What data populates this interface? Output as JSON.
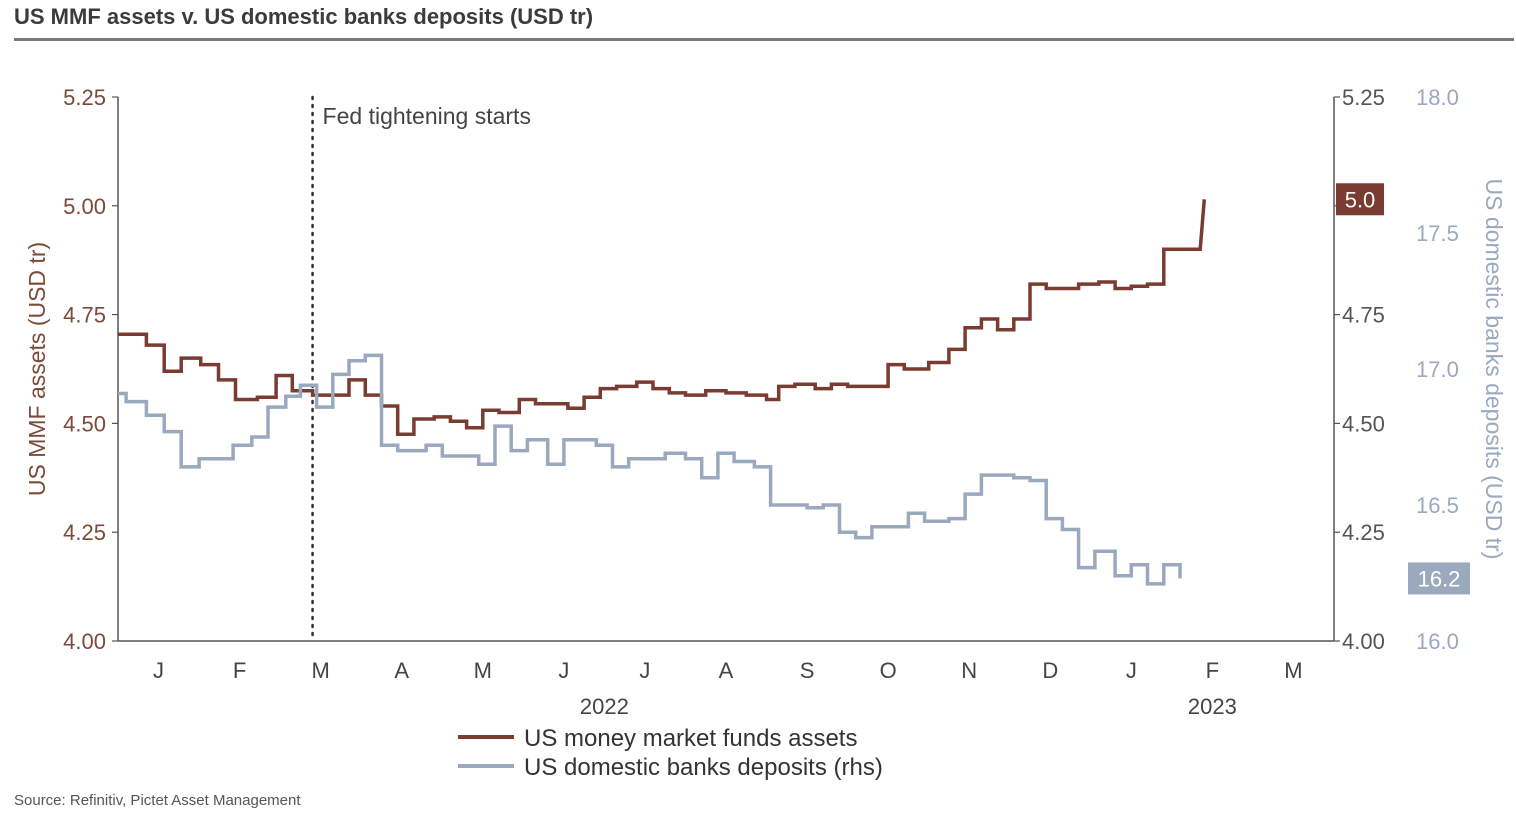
{
  "title": "US MMF assets v. US domestic banks deposits (USD tr)",
  "source": "Source: Refinitiv, Pictet Asset Management",
  "colors": {
    "mmf": "#7a3b30",
    "deposits": "#9aa9be",
    "axis": "#555555",
    "left_ticks": "#7a4a3a",
    "right_ticks": "#555555",
    "right2_ticks": "#9aa9be"
  },
  "chart_data": {
    "type": "line",
    "title": "US MMF assets v. US domestic banks deposits (USD tr)",
    "ylabel_left": "US MMF assets (USD tr)",
    "ylabel_right": "US domestic banks deposits (USD tr)",
    "ylim_left": [
      4.0,
      5.25
    ],
    "ylim_right": [
      16.0,
      18.0
    ],
    "yticks_left": [
      "4.00",
      "4.25",
      "4.50",
      "4.75",
      "5.00",
      "5.25"
    ],
    "yticks_right_mmf": [
      "4.00",
      "4.25",
      "4.50",
      "4.75",
      "5.00",
      "5.25"
    ],
    "yticks_right": [
      "16.0",
      "16.5",
      "17.0",
      "17.5",
      "18.0"
    ],
    "x_range": [
      0,
      15.0
    ],
    "month_ticks": [
      {
        "label": "J",
        "x": 0.5
      },
      {
        "label": "F",
        "x": 1.5
      },
      {
        "label": "M",
        "x": 2.5
      },
      {
        "label": "A",
        "x": 3.5
      },
      {
        "label": "M",
        "x": 4.5
      },
      {
        "label": "J",
        "x": 5.5
      },
      {
        "label": "J",
        "x": 6.5
      },
      {
        "label": "A",
        "x": 7.5
      },
      {
        "label": "S",
        "x": 8.5
      },
      {
        "label": "O",
        "x": 9.5
      },
      {
        "label": "N",
        "x": 10.5
      },
      {
        "label": "D",
        "x": 11.5
      },
      {
        "label": "J",
        "x": 12.5
      },
      {
        "label": "F",
        "x": 13.5
      },
      {
        "label": "M",
        "x": 14.5
      }
    ],
    "year_labels": [
      {
        "label": "2022",
        "x": 6.0
      },
      {
        "label": "2023",
        "x": 13.5
      }
    ],
    "annotation": {
      "text": "Fed tightening starts",
      "x": 2.4
    },
    "series": [
      {
        "name": "US money market funds assets",
        "axis": "left",
        "end_label": "5.0",
        "points": [
          [
            0.0,
            4.705
          ],
          [
            0.35,
            4.705
          ],
          [
            0.35,
            4.68
          ],
          [
            0.57,
            4.68
          ],
          [
            0.57,
            4.62
          ],
          [
            0.78,
            4.62
          ],
          [
            0.78,
            4.65
          ],
          [
            1.02,
            4.65
          ],
          [
            1.02,
            4.635
          ],
          [
            1.24,
            4.635
          ],
          [
            1.24,
            4.6
          ],
          [
            1.45,
            4.6
          ],
          [
            1.45,
            4.555
          ],
          [
            1.72,
            4.555
          ],
          [
            1.72,
            4.56
          ],
          [
            1.95,
            4.56
          ],
          [
            1.95,
            4.61
          ],
          [
            2.15,
            4.61
          ],
          [
            2.15,
            4.575
          ],
          [
            2.4,
            4.575
          ],
          [
            2.4,
            4.565
          ],
          [
            2.85,
            4.565
          ],
          [
            2.85,
            4.6
          ],
          [
            3.05,
            4.6
          ],
          [
            3.05,
            4.565
          ],
          [
            3.25,
            4.565
          ],
          [
            3.25,
            4.54
          ],
          [
            3.45,
            4.54
          ],
          [
            3.45,
            4.475
          ],
          [
            3.65,
            4.475
          ],
          [
            3.65,
            4.51
          ],
          [
            3.9,
            4.51
          ],
          [
            3.9,
            4.515
          ],
          [
            4.1,
            4.515
          ],
          [
            4.1,
            4.505
          ],
          [
            4.3,
            4.505
          ],
          [
            4.3,
            4.49
          ],
          [
            4.5,
            4.49
          ],
          [
            4.5,
            4.53
          ],
          [
            4.7,
            4.53
          ],
          [
            4.7,
            4.525
          ],
          [
            4.95,
            4.525
          ],
          [
            4.95,
            4.555
          ],
          [
            5.15,
            4.555
          ],
          [
            5.15,
            4.545
          ],
          [
            5.55,
            4.545
          ],
          [
            5.55,
            4.535
          ],
          [
            5.75,
            4.535
          ],
          [
            5.75,
            4.56
          ],
          [
            5.95,
            4.56
          ],
          [
            5.95,
            4.58
          ],
          [
            6.15,
            4.58
          ],
          [
            6.15,
            4.585
          ],
          [
            6.4,
            4.585
          ],
          [
            6.4,
            4.595
          ],
          [
            6.6,
            4.595
          ],
          [
            6.6,
            4.58
          ],
          [
            6.8,
            4.58
          ],
          [
            6.8,
            4.57
          ],
          [
            7.0,
            4.57
          ],
          [
            7.0,
            4.565
          ],
          [
            7.25,
            4.565
          ],
          [
            7.25,
            4.575
          ],
          [
            7.5,
            4.575
          ],
          [
            7.5,
            4.57
          ],
          [
            7.75,
            4.57
          ],
          [
            7.75,
            4.565
          ],
          [
            8.0,
            4.565
          ],
          [
            8.0,
            4.555
          ],
          [
            8.15,
            4.555
          ],
          [
            8.15,
            4.585
          ],
          [
            8.35,
            4.585
          ],
          [
            8.35,
            4.59
          ],
          [
            8.6,
            4.59
          ],
          [
            8.6,
            4.58
          ],
          [
            8.8,
            4.58
          ],
          [
            8.8,
            4.59
          ],
          [
            9.0,
            4.59
          ],
          [
            9.0,
            4.585
          ],
          [
            9.5,
            4.585
          ],
          [
            9.5,
            4.635
          ],
          [
            9.7,
            4.635
          ],
          [
            9.7,
            4.625
          ],
          [
            10.0,
            4.625
          ],
          [
            10.0,
            4.64
          ],
          [
            10.25,
            4.64
          ],
          [
            10.25,
            4.67
          ],
          [
            10.45,
            4.67
          ],
          [
            10.45,
            4.72
          ],
          [
            10.65,
            4.72
          ],
          [
            10.65,
            4.74
          ],
          [
            10.85,
            4.74
          ],
          [
            10.85,
            4.715
          ],
          [
            11.05,
            4.715
          ],
          [
            11.05,
            4.74
          ],
          [
            11.25,
            4.74
          ],
          [
            11.25,
            4.82
          ],
          [
            11.45,
            4.82
          ],
          [
            11.45,
            4.81
          ],
          [
            11.85,
            4.81
          ],
          [
            11.85,
            4.82
          ],
          [
            12.1,
            4.82
          ],
          [
            12.1,
            4.825
          ],
          [
            12.3,
            4.825
          ],
          [
            12.3,
            4.81
          ],
          [
            12.5,
            4.81
          ],
          [
            12.5,
            4.815
          ],
          [
            12.7,
            4.815
          ],
          [
            12.7,
            4.82
          ],
          [
            12.9,
            4.82
          ],
          [
            12.9,
            4.9
          ],
          [
            13.35,
            4.9
          ],
          [
            13.4,
            5.015
          ]
        ]
      },
      {
        "name": "US domestic banks deposits (rhs)",
        "axis": "right",
        "end_label": "16.2",
        "points": [
          [
            0.0,
            16.91
          ],
          [
            0.1,
            16.91
          ],
          [
            0.1,
            16.88
          ],
          [
            0.35,
            16.88
          ],
          [
            0.35,
            16.83
          ],
          [
            0.57,
            16.83
          ],
          [
            0.57,
            16.77
          ],
          [
            0.78,
            16.77
          ],
          [
            0.78,
            16.64
          ],
          [
            1.0,
            16.64
          ],
          [
            1.0,
            16.67
          ],
          [
            1.42,
            16.67
          ],
          [
            1.42,
            16.72
          ],
          [
            1.65,
            16.72
          ],
          [
            1.65,
            16.75
          ],
          [
            1.85,
            16.75
          ],
          [
            1.85,
            16.86
          ],
          [
            2.07,
            16.86
          ],
          [
            2.07,
            16.9
          ],
          [
            2.25,
            16.9
          ],
          [
            2.25,
            16.94
          ],
          [
            2.45,
            16.94
          ],
          [
            2.45,
            16.86
          ],
          [
            2.65,
            16.86
          ],
          [
            2.65,
            16.98
          ],
          [
            2.85,
            16.98
          ],
          [
            2.85,
            17.03
          ],
          [
            3.05,
            17.03
          ],
          [
            3.05,
            17.05
          ],
          [
            3.25,
            17.05
          ],
          [
            3.25,
            16.72
          ],
          [
            3.45,
            16.72
          ],
          [
            3.45,
            16.7
          ],
          [
            3.8,
            16.7
          ],
          [
            3.8,
            16.72
          ],
          [
            4.0,
            16.72
          ],
          [
            4.0,
            16.68
          ],
          [
            4.45,
            16.68
          ],
          [
            4.45,
            16.65
          ],
          [
            4.65,
            16.65
          ],
          [
            4.65,
            16.79
          ],
          [
            4.85,
            16.79
          ],
          [
            4.85,
            16.7
          ],
          [
            5.05,
            16.7
          ],
          [
            5.05,
            16.74
          ],
          [
            5.3,
            16.74
          ],
          [
            5.3,
            16.65
          ],
          [
            5.5,
            16.65
          ],
          [
            5.5,
            16.74
          ],
          [
            5.9,
            16.74
          ],
          [
            5.9,
            16.72
          ],
          [
            6.1,
            16.72
          ],
          [
            6.1,
            16.64
          ],
          [
            6.3,
            16.64
          ],
          [
            6.3,
            16.67
          ],
          [
            6.75,
            16.67
          ],
          [
            6.75,
            16.69
          ],
          [
            7.0,
            16.69
          ],
          [
            7.0,
            16.67
          ],
          [
            7.2,
            16.67
          ],
          [
            7.2,
            16.6
          ],
          [
            7.4,
            16.6
          ],
          [
            7.4,
            16.69
          ],
          [
            7.6,
            16.69
          ],
          [
            7.6,
            16.66
          ],
          [
            7.85,
            16.66
          ],
          [
            7.85,
            16.64
          ],
          [
            8.05,
            16.64
          ],
          [
            8.05,
            16.5
          ],
          [
            8.5,
            16.5
          ],
          [
            8.5,
            16.49
          ],
          [
            8.7,
            16.49
          ],
          [
            8.7,
            16.5
          ],
          [
            8.9,
            16.5
          ],
          [
            8.9,
            16.4
          ],
          [
            9.1,
            16.4
          ],
          [
            9.1,
            16.38
          ],
          [
            9.3,
            16.38
          ],
          [
            9.3,
            16.42
          ],
          [
            9.75,
            16.42
          ],
          [
            9.75,
            16.47
          ],
          [
            9.95,
            16.47
          ],
          [
            9.95,
            16.44
          ],
          [
            10.25,
            16.44
          ],
          [
            10.25,
            16.45
          ],
          [
            10.45,
            16.45
          ],
          [
            10.45,
            16.54
          ],
          [
            10.65,
            16.54
          ],
          [
            10.65,
            16.61
          ],
          [
            11.05,
            16.61
          ],
          [
            11.05,
            16.6
          ],
          [
            11.25,
            16.6
          ],
          [
            11.25,
            16.59
          ],
          [
            11.45,
            16.59
          ],
          [
            11.45,
            16.45
          ],
          [
            11.65,
            16.45
          ],
          [
            11.65,
            16.41
          ],
          [
            11.85,
            16.41
          ],
          [
            11.85,
            16.27
          ],
          [
            12.05,
            16.27
          ],
          [
            12.05,
            16.33
          ],
          [
            12.3,
            16.33
          ],
          [
            12.3,
            16.24
          ],
          [
            12.5,
            16.24
          ],
          [
            12.5,
            16.28
          ],
          [
            12.7,
            16.28
          ],
          [
            12.7,
            16.21
          ],
          [
            12.9,
            16.21
          ],
          [
            12.9,
            16.28
          ],
          [
            13.1,
            16.28
          ],
          [
            13.1,
            16.23
          ]
        ]
      }
    ],
    "legend": [
      {
        "label": "US money market funds assets",
        "series": 0
      },
      {
        "label": "US domestic banks deposits (rhs)",
        "series": 1
      }
    ],
    "legend_position": "bottom-center"
  }
}
